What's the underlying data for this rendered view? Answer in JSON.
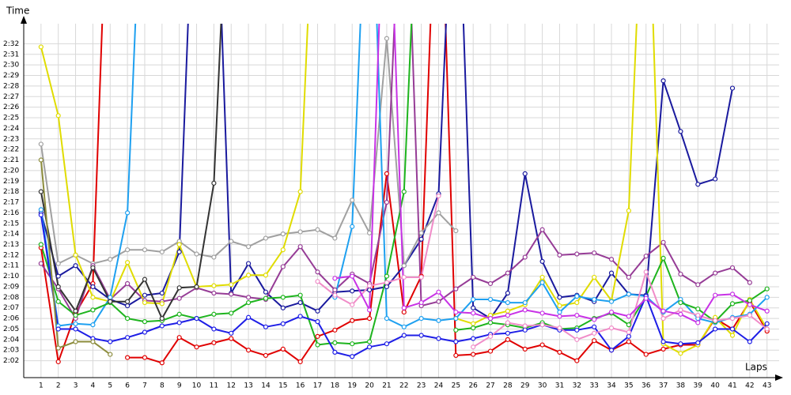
{
  "chart_data": {
    "type": "line",
    "y_label": "Time",
    "x_label": "Laps",
    "x": [
      1,
      2,
      3,
      4,
      5,
      6,
      7,
      8,
      9,
      10,
      11,
      12,
      13,
      14,
      15,
      16,
      17,
      18,
      19,
      20,
      21,
      22,
      23,
      24,
      25,
      26,
      27,
      28,
      29,
      30,
      31,
      32,
      33,
      34,
      35,
      36,
      37,
      38,
      39,
      40,
      41,
      42,
      43
    ],
    "xticks": [
      1,
      2,
      3,
      4,
      5,
      6,
      7,
      8,
      9,
      10,
      11,
      12,
      13,
      14,
      15,
      16,
      17,
      18,
      19,
      20,
      21,
      22,
      23,
      24,
      25,
      26,
      27,
      28,
      29,
      30,
      31,
      32,
      33,
      34,
      35,
      36,
      37,
      38,
      39,
      40,
      41,
      42,
      43
    ],
    "xlim": [
      0,
      43.7
    ],
    "ylim": [
      120.4,
      153.9
    ],
    "yticks": [
      {
        "value": 122,
        "label": "2:02"
      },
      {
        "value": 123,
        "label": "2:03"
      },
      {
        "value": 124,
        "label": "2:04"
      },
      {
        "value": 125,
        "label": "2:05"
      },
      {
        "value": 126,
        "label": "2:06"
      },
      {
        "value": 127,
        "label": "2:07"
      },
      {
        "value": 128,
        "label": "2:08"
      },
      {
        "value": 129,
        "label": "2:09"
      },
      {
        "value": 130,
        "label": "2:10"
      },
      {
        "value": 131,
        "label": "2:11"
      },
      {
        "value": 132,
        "label": "2:12"
      },
      {
        "value": 133,
        "label": "2:13"
      },
      {
        "value": 134,
        "label": "2:14"
      },
      {
        "value": 135,
        "label": "2:15"
      },
      {
        "value": 136,
        "label": "2:16"
      },
      {
        "value": 137,
        "label": "2:17"
      },
      {
        "value": 138,
        "label": "2:18"
      },
      {
        "value": 139,
        "label": "2:19"
      },
      {
        "value": 140,
        "label": "2:20"
      },
      {
        "value": 141,
        "label": "2:21"
      },
      {
        "value": 142,
        "label": "2:22"
      },
      {
        "value": 143,
        "label": "2:23"
      },
      {
        "value": 144,
        "label": "2:24"
      },
      {
        "value": 145,
        "label": "2:25"
      },
      {
        "value": 146,
        "label": "2:26"
      },
      {
        "value": 147,
        "label": "2:27"
      },
      {
        "value": 148,
        "label": "2:28"
      },
      {
        "value": 149,
        "label": "2:29"
      },
      {
        "value": 150,
        "label": "2:30"
      },
      {
        "value": 151,
        "label": "2:31"
      },
      {
        "value": 152,
        "label": "2:32"
      }
    ],
    "grid": true,
    "series": [
      {
        "color": "#e00000",
        "values": [
          132.7,
          121.9,
          126.5,
          129.3,
          175,
          null,
          null,
          null,
          null,
          null,
          null,
          null,
          null,
          null,
          null,
          null,
          null,
          null,
          null,
          null,
          null,
          null,
          null,
          null,
          null,
          null,
          null,
          null,
          null,
          null,
          null,
          null,
          null,
          null,
          null,
          null,
          null,
          null,
          null,
          null,
          null,
          null,
          null
        ]
      },
      {
        "color": "#e00000",
        "values": [
          null,
          null,
          null,
          null,
          null,
          122.3,
          122.3,
          121.8,
          124.2,
          123.3,
          123.7,
          124.1,
          123,
          122.5,
          123.1,
          121.9,
          124.3,
          124.9,
          125.8,
          126,
          139.7,
          126.6,
          130,
          175,
          122.5,
          122.6,
          122.9,
          124,
          123.1,
          123.5,
          122.8,
          122,
          123.9,
          123,
          123.8,
          122.6,
          123.1,
          123.5,
          123.5,
          126,
          125,
          127.6,
          124.8
        ]
      },
      {
        "color": "#1a1a9e",
        "values": [
          136,
          130,
          131,
          129,
          127.8,
          127.2,
          128.2,
          128.4,
          132.3,
          175,
          175,
          128.4,
          131.2,
          128.5,
          127,
          127.5,
          126.7,
          128.5,
          128.6,
          128.7,
          129,
          131,
          133.5,
          137.8,
          175,
          127,
          126,
          128.4,
          139.7,
          131.4,
          128,
          128.2,
          127.6,
          130.3,
          128.3,
          128.2,
          148.5,
          143.7,
          138.7,
          139.2,
          147.8,
          null,
          null
        ]
      },
      {
        "color": "#a0a0a0",
        "values": [
          142.5,
          131.2,
          132,
          131.2,
          131.6,
          132.5,
          132.5,
          132.3,
          133.3,
          132.1,
          131.8,
          133.3,
          132.8,
          133.6,
          134,
          134.2,
          134.4,
          133.6,
          137.2,
          134.1,
          152.5,
          131,
          134.1,
          136,
          134.3,
          null,
          null,
          null,
          null,
          null,
          null,
          null,
          null,
          null,
          null,
          null,
          null,
          null,
          null,
          null,
          null,
          null,
          null
        ]
      },
      {
        "color": "#963c96",
        "values": [
          131.2,
          128.8,
          126,
          131,
          127.8,
          129.3,
          127.7,
          127.6,
          127.9,
          128.9,
          128.4,
          128.3,
          128,
          127.8,
          130.9,
          132.8,
          130.4,
          128.7,
          130.2,
          129.3,
          137,
          175,
          127.2,
          127.6,
          128.8,
          129.9,
          129.3,
          130.3,
          131.8,
          134.4,
          132,
          132.1,
          132.2,
          131.6,
          129.9,
          131.9,
          133.2,
          130.2,
          129.2,
          130.3,
          130.8,
          129.4,
          null
        ]
      },
      {
        "color": "#e0dc00",
        "values": [
          151.7,
          145.2,
          132,
          128,
          127.6,
          131.3,
          127.5,
          127.4,
          133,
          129,
          129.1,
          129.2,
          130.1,
          130.1,
          132.5,
          138,
          175,
          null,
          null,
          null,
          null,
          null,
          null,
          null,
          126,
          125.5,
          126.3,
          126.7,
          127.3,
          129.9,
          127.2,
          127.5,
          129.9,
          127.7,
          136.2,
          175,
          123.6,
          122.7,
          123.5,
          126.1,
          124.4,
          127.8,
          125
        ]
      },
      {
        "color": "#1ea0f0",
        "values": [
          136.3,
          125.3,
          125.5,
          125.4,
          128,
          136,
          175,
          null,
          null,
          null,
          null,
          null,
          null,
          null,
          null,
          null,
          null,
          128,
          134.7,
          175,
          126,
          125.2,
          126,
          125.8,
          126,
          127.8,
          127.8,
          127.5,
          127.5,
          129.4,
          126.6,
          128.1,
          127.8,
          127.6,
          128.3,
          128.1,
          126.6,
          127.8,
          126,
          125.6,
          126.1,
          126.4,
          128
        ]
      },
      {
        "color": "#1eb41e",
        "values": [
          133,
          127.6,
          126.3,
          126.8,
          127.5,
          126,
          125.7,
          125.8,
          126.4,
          126,
          126.4,
          126.5,
          127.5,
          127.9,
          128,
          128.2,
          123.5,
          123.7,
          123.6,
          123.8,
          130,
          138,
          175,
          null,
          124.9,
          125.1,
          125.6,
          125.4,
          125.1,
          125.6,
          125,
          125.1,
          126,
          126.5,
          125.4,
          128.1,
          131.7,
          127.5,
          126.9,
          125.7,
          127.4,
          127.7,
          128.8
        ]
      },
      {
        "color": "#1e1ee6",
        "values": [
          135.8,
          125,
          125,
          124.1,
          123.8,
          124.2,
          124.7,
          125.3,
          125.6,
          126,
          125,
          124.6,
          126.1,
          125.2,
          125.5,
          126.2,
          125.7,
          122.8,
          122.4,
          123.3,
          123.6,
          124.4,
          124.4,
          124.1,
          123.8,
          124.1,
          124.5,
          124.6,
          124.9,
          125.4,
          124.9,
          124.9,
          125.2,
          123,
          124.3,
          128.1,
          123.8,
          123.6,
          123.7,
          125,
          125,
          123.8,
          125.5
        ]
      },
      {
        "color": "#f08cc8",
        "values": [
          null,
          null,
          null,
          null,
          null,
          null,
          null,
          null,
          null,
          null,
          null,
          null,
          null,
          null,
          null,
          null,
          129.5,
          128.2,
          127.3,
          129.1,
          129.4,
          129.9,
          129.9,
          137.6,
          null,
          123.3,
          124.3,
          125.6,
          125.3,
          125.4,
          125.1,
          124,
          124.6,
          125.1,
          124.7,
          130.4,
          126,
          126.8,
          126.3,
          125.8,
          126,
          126.3,
          125
        ]
      },
      {
        "color": "#333333",
        "values": [
          138,
          129,
          126.7,
          130.8,
          127.6,
          127.6,
          129.7,
          126,
          128.9,
          129,
          138.8,
          175,
          null,
          null,
          null,
          null,
          null,
          null,
          null,
          null,
          null,
          null,
          null,
          null,
          null,
          null,
          null,
          null,
          null,
          null,
          null,
          null,
          null,
          null,
          null,
          null,
          null,
          null,
          null,
          null,
          null,
          null,
          null
        ]
      },
      {
        "color": "#c832e6",
        "values": [
          null,
          null,
          null,
          null,
          null,
          null,
          null,
          null,
          null,
          null,
          null,
          null,
          null,
          null,
          null,
          null,
          null,
          129.8,
          130,
          126.8,
          175,
          127,
          127.5,
          128.5,
          126.6,
          126.5,
          126,
          126.3,
          126.8,
          126.5,
          126.2,
          126.3,
          125.9,
          126.6,
          126.2,
          127.9,
          126.7,
          126.4,
          125.6,
          128.2,
          128.3,
          127.3,
          126.7
        ]
      },
      {
        "color": "#8c8c3c",
        "values": [
          141,
          123.2,
          123.8,
          123.8,
          122.6,
          null,
          null,
          null,
          null,
          null,
          null,
          null,
          null,
          null,
          null,
          null,
          null,
          null,
          null,
          null,
          null,
          null,
          null,
          null,
          null,
          null,
          null,
          null,
          null,
          null,
          null,
          null,
          null,
          null,
          null,
          null,
          null,
          null,
          null,
          null,
          null,
          null,
          null
        ]
      }
    ]
  }
}
